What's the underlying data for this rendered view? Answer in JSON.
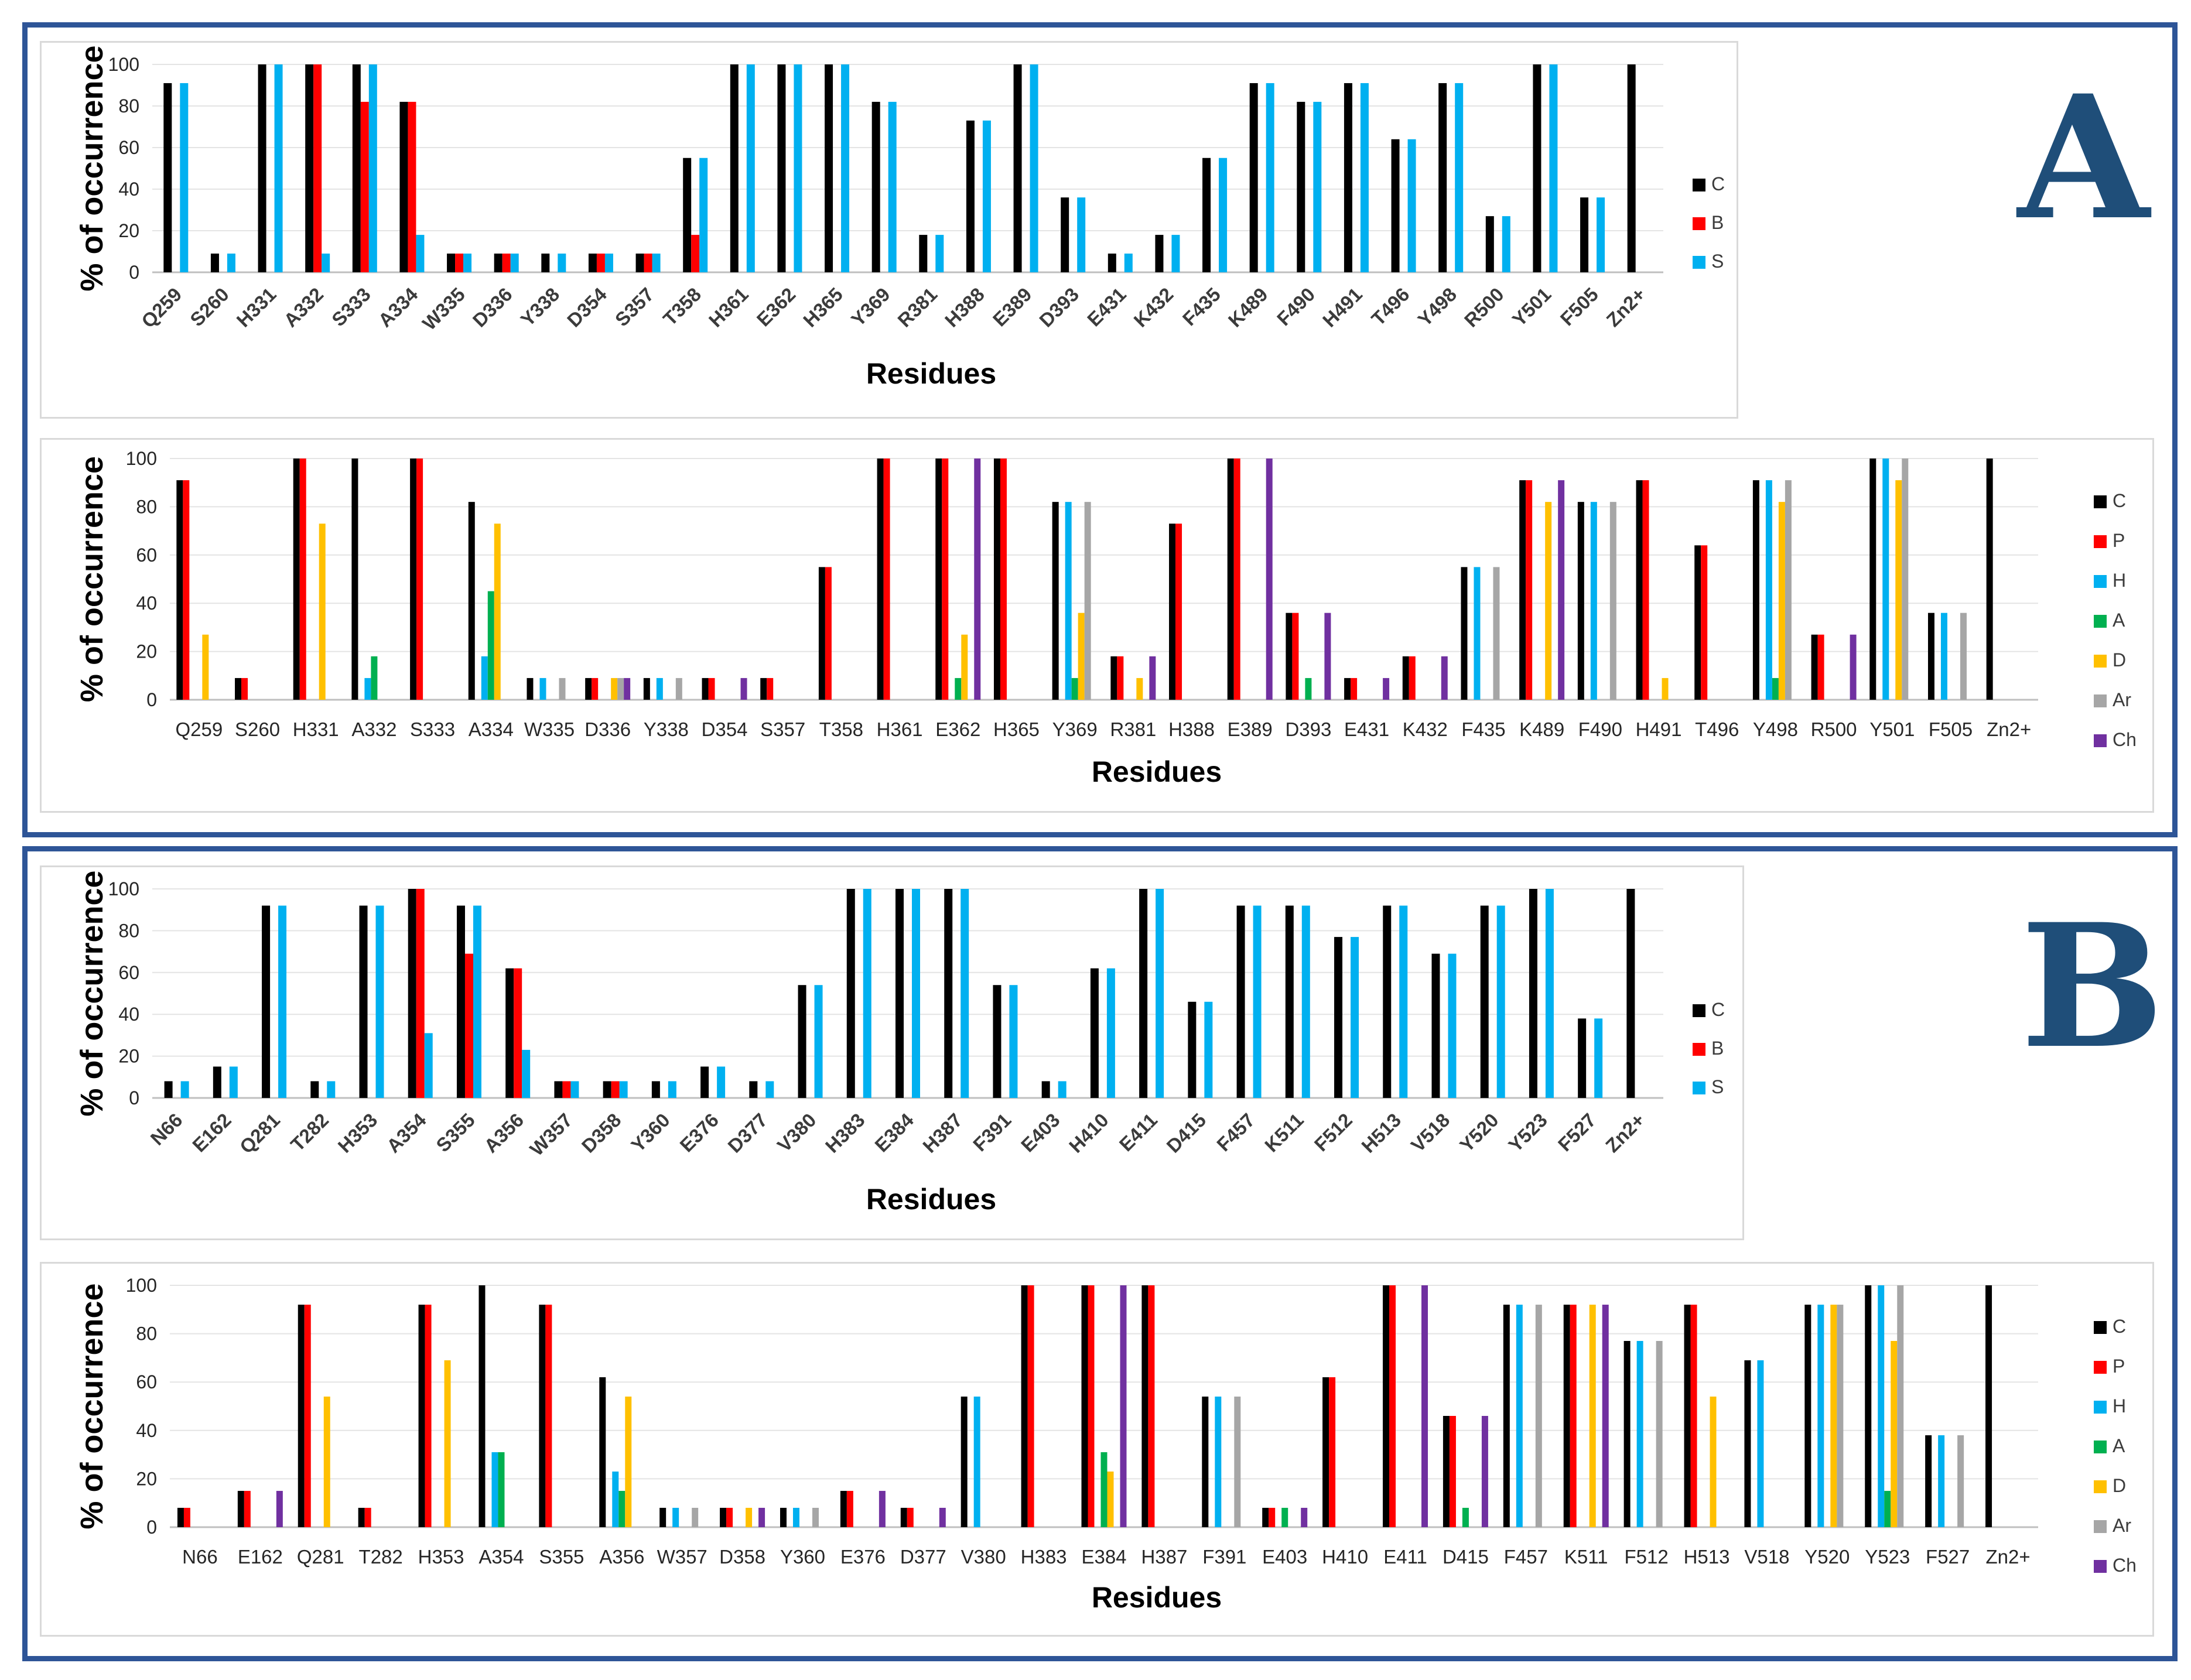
{
  "panels": [
    {
      "label": "A"
    },
    {
      "label": "B"
    }
  ],
  "legend_colors": {
    "C": "#000000",
    "B": "#ff0000",
    "S": "#00b0f0",
    "P": "#ff0000",
    "H": "#00b0f0",
    "A": "#00b050",
    "D": "#ffc000",
    "Ar": "#a6a6a6",
    "Ch": "#7030a0"
  },
  "chart_data": [
    {
      "id": "A1",
      "panel": "A",
      "type": "bar",
      "title": "",
      "xlabel": "Residues",
      "ylabel": "% of occurrence",
      "ylim": [
        0,
        100
      ],
      "yticks": [
        0,
        20,
        40,
        60,
        80,
        100
      ],
      "rotated_labels": true,
      "categories": [
        "Q259",
        "S260",
        "H331",
        "A332",
        "S333",
        "A334",
        "W335",
        "D336",
        "Y338",
        "D354",
        "S357",
        "T358",
        "H361",
        "E362",
        "H365",
        "Y369",
        "R381",
        "H388",
        "E389",
        "D393",
        "E431",
        "K432",
        "F435",
        "K489",
        "F490",
        "H491",
        "T496",
        "Y498",
        "R500",
        "Y501",
        "F505",
        "Zn2+"
      ],
      "series": [
        {
          "name": "C",
          "values": [
            91,
            9,
            100,
            100,
            100,
            82,
            9,
            9,
            9,
            9,
            9,
            55,
            100,
            100,
            100,
            82,
            18,
            73,
            100,
            36,
            9,
            18,
            55,
            91,
            82,
            91,
            64,
            91,
            27,
            100,
            36,
            100
          ]
        },
        {
          "name": "B",
          "values": [
            0,
            0,
            0,
            100,
            82,
            82,
            9,
            9,
            0,
            9,
            9,
            18,
            0,
            0,
            0,
            0,
            0,
            0,
            0,
            0,
            0,
            0,
            0,
            0,
            0,
            0,
            0,
            0,
            0,
            0,
            0,
            0
          ]
        },
        {
          "name": "S",
          "values": [
            91,
            9,
            100,
            9,
            100,
            18,
            9,
            9,
            9,
            9,
            9,
            55,
            100,
            100,
            100,
            82,
            18,
            73,
            100,
            36,
            9,
            18,
            55,
            91,
            82,
            91,
            64,
            91,
            27,
            100,
            36,
            0
          ]
        }
      ]
    },
    {
      "id": "A2",
      "panel": "A",
      "type": "bar",
      "title": "",
      "xlabel": "Residues",
      "ylabel": "% of occurrence",
      "ylim": [
        0,
        100
      ],
      "yticks": [
        0,
        20,
        40,
        60,
        80,
        100
      ],
      "rotated_labels": false,
      "categories": [
        "Q259",
        "S260",
        "H331",
        "A332",
        "S333",
        "A334",
        "W335",
        "D336",
        "Y338",
        "D354",
        "S357",
        "T358",
        "H361",
        "E362",
        "H365",
        "Y369",
        "R381",
        "H388",
        "E389",
        "D393",
        "E431",
        "K432",
        "F435",
        "K489",
        "F490",
        "H491",
        "T496",
        "Y498",
        "R500",
        "Y501",
        "F505",
        "Zn2+"
      ],
      "series": [
        {
          "name": "C",
          "values": [
            91,
            9,
            100,
            100,
            100,
            82,
            9,
            9,
            9,
            9,
            9,
            55,
            100,
            100,
            100,
            82,
            18,
            73,
            100,
            36,
            9,
            18,
            55,
            91,
            82,
            91,
            64,
            91,
            27,
            100,
            36,
            100
          ]
        },
        {
          "name": "P",
          "values": [
            91,
            9,
            100,
            0,
            100,
            0,
            0,
            9,
            0,
            9,
            9,
            55,
            100,
            100,
            100,
            0,
            18,
            73,
            100,
            36,
            9,
            18,
            0,
            91,
            0,
            91,
            64,
            0,
            27,
            0,
            0,
            0
          ]
        },
        {
          "name": "H",
          "values": [
            0,
            0,
            0,
            9,
            0,
            18,
            9,
            0,
            9,
            0,
            0,
            0,
            0,
            0,
            0,
            82,
            0,
            0,
            0,
            0,
            0,
            0,
            55,
            0,
            82,
            0,
            0,
            91,
            0,
            100,
            36,
            0
          ]
        },
        {
          "name": "A",
          "values": [
            0,
            0,
            0,
            18,
            0,
            45,
            0,
            0,
            0,
            0,
            0,
            0,
            0,
            9,
            0,
            9,
            0,
            0,
            0,
            9,
            0,
            0,
            0,
            0,
            0,
            0,
            0,
            9,
            0,
            0,
            0,
            0
          ]
        },
        {
          "name": "D",
          "values": [
            27,
            0,
            73,
            0,
            0,
            73,
            0,
            9,
            0,
            0,
            0,
            0,
            0,
            27,
            0,
            36,
            9,
            0,
            0,
            0,
            0,
            0,
            0,
            82,
            0,
            9,
            0,
            82,
            0,
            91,
            0,
            0
          ]
        },
        {
          "name": "Ar",
          "values": [
            0,
            0,
            0,
            0,
            0,
            0,
            9,
            9,
            9,
            0,
            0,
            0,
            0,
            0,
            0,
            82,
            0,
            0,
            0,
            0,
            0,
            0,
            55,
            0,
            82,
            0,
            0,
            91,
            0,
            100,
            36,
            0
          ]
        },
        {
          "name": "Ch",
          "values": [
            0,
            0,
            0,
            0,
            0,
            0,
            0,
            9,
            0,
            9,
            0,
            0,
            0,
            100,
            0,
            0,
            18,
            0,
            100,
            36,
            9,
            18,
            0,
            91,
            0,
            0,
            0,
            0,
            27,
            0,
            0,
            0
          ]
        }
      ]
    },
    {
      "id": "B1",
      "panel": "B",
      "type": "bar",
      "title": "",
      "xlabel": "Residues",
      "ylabel": "% of occurrence",
      "ylim": [
        0,
        100
      ],
      "yticks": [
        0,
        20,
        40,
        60,
        80,
        100
      ],
      "rotated_labels": true,
      "categories": [
        "N66",
        "E162",
        "Q281",
        "T282",
        "H353",
        "A354",
        "S355",
        "A356",
        "W357",
        "D358",
        "Y360",
        "E376",
        "D377",
        "V380",
        "H383",
        "E384",
        "H387",
        "F391",
        "E403",
        "H410",
        "E411",
        "D415",
        "F457",
        "K511",
        "F512",
        "H513",
        "V518",
        "Y520",
        "Y523",
        "F527",
        "Zn2+"
      ],
      "series": [
        {
          "name": "C",
          "values": [
            8,
            15,
            92,
            8,
            92,
            100,
            92,
            62,
            8,
            8,
            8,
            15,
            8,
            54,
            100,
            100,
            100,
            54,
            8,
            62,
            100,
            46,
            92,
            92,
            77,
            92,
            69,
            92,
            100,
            38,
            100
          ]
        },
        {
          "name": "B",
          "values": [
            0,
            0,
            0,
            0,
            0,
            100,
            69,
            62,
            8,
            8,
            0,
            0,
            0,
            0,
            0,
            0,
            0,
            0,
            0,
            0,
            0,
            0,
            0,
            0,
            0,
            0,
            0,
            0,
            0,
            0,
            0
          ]
        },
        {
          "name": "S",
          "values": [
            8,
            15,
            92,
            8,
            92,
            31,
            92,
            23,
            8,
            8,
            8,
            15,
            8,
            54,
            100,
            100,
            100,
            54,
            8,
            62,
            100,
            46,
            92,
            92,
            77,
            92,
            69,
            92,
            100,
            38,
            0
          ]
        }
      ]
    },
    {
      "id": "B2",
      "panel": "B",
      "type": "bar",
      "title": "",
      "xlabel": "Residues",
      "ylabel": "% of occurrence",
      "ylim": [
        0,
        100
      ],
      "yticks": [
        0,
        20,
        40,
        60,
        80,
        100
      ],
      "rotated_labels": false,
      "categories": [
        "N66",
        "E162",
        "Q281",
        "T282",
        "H353",
        "A354",
        "S355",
        "A356",
        "W357",
        "D358",
        "Y360",
        "E376",
        "D377",
        "V380",
        "H383",
        "E384",
        "H387",
        "F391",
        "E403",
        "H410",
        "E411",
        "D415",
        "F457",
        "K511",
        "F512",
        "H513",
        "V518",
        "Y520",
        "Y523",
        "F527",
        "Zn2+"
      ],
      "series": [
        {
          "name": "C",
          "values": [
            8,
            15,
            92,
            8,
            92,
            100,
            92,
            62,
            8,
            8,
            8,
            15,
            8,
            54,
            100,
            100,
            100,
            54,
            8,
            62,
            100,
            46,
            92,
            92,
            77,
            92,
            69,
            92,
            100,
            38,
            100
          ]
        },
        {
          "name": "P",
          "values": [
            8,
            15,
            92,
            8,
            92,
            0,
            92,
            0,
            0,
            8,
            0,
            15,
            8,
            0,
            100,
            100,
            100,
            0,
            8,
            62,
            100,
            46,
            0,
            92,
            0,
            92,
            0,
            0,
            0,
            0,
            0
          ]
        },
        {
          "name": "H",
          "values": [
            0,
            0,
            0,
            0,
            0,
            31,
            0,
            23,
            8,
            0,
            8,
            0,
            0,
            54,
            0,
            0,
            0,
            54,
            0,
            0,
            0,
            0,
            92,
            0,
            77,
            0,
            69,
            92,
            100,
            38,
            0
          ]
        },
        {
          "name": "A",
          "values": [
            0,
            0,
            0,
            0,
            0,
            31,
            0,
            15,
            0,
            0,
            0,
            0,
            0,
            0,
            0,
            31,
            0,
            0,
            8,
            0,
            0,
            8,
            0,
            0,
            0,
            0,
            0,
            0,
            15,
            0,
            0
          ]
        },
        {
          "name": "D",
          "values": [
            0,
            0,
            54,
            0,
            69,
            0,
            0,
            54,
            0,
            8,
            0,
            0,
            0,
            0,
            0,
            23,
            0,
            0,
            0,
            0,
            0,
            0,
            0,
            92,
            0,
            54,
            0,
            92,
            77,
            0,
            0
          ]
        },
        {
          "name": "Ar",
          "values": [
            0,
            0,
            0,
            0,
            0,
            0,
            0,
            0,
            8,
            0,
            8,
            0,
            0,
            0,
            0,
            0,
            0,
            54,
            0,
            0,
            0,
            0,
            92,
            0,
            77,
            0,
            0,
            92,
            100,
            38,
            0
          ]
        },
        {
          "name": "Ch",
          "values": [
            0,
            15,
            0,
            0,
            0,
            0,
            0,
            0,
            0,
            8,
            0,
            15,
            8,
            0,
            0,
            100,
            0,
            0,
            8,
            0,
            100,
            46,
            0,
            92,
            0,
            0,
            0,
            0,
            0,
            0,
            0
          ]
        }
      ]
    }
  ]
}
